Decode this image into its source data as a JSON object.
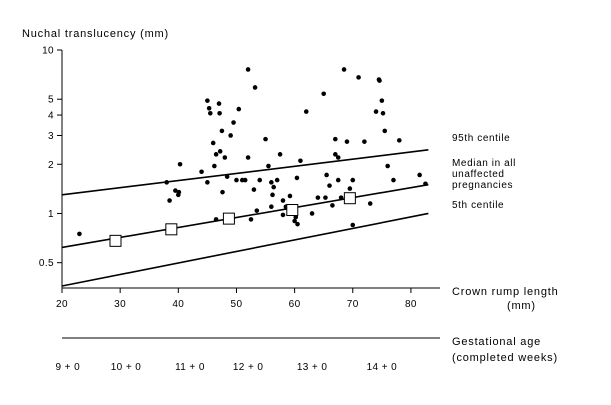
{
  "chart_data": {
    "type": "scatter",
    "ylabel": "Nuchal translucency (mm)",
    "xlabel_line1": "Crown rump length",
    "xlabel_line2": "(mm)",
    "xlim": [
      20,
      85
    ],
    "ylim": [
      0.35,
      10
    ],
    "yscale": "log",
    "x_ticks": [
      "20",
      "30",
      "40",
      "50",
      "60",
      "70",
      "80"
    ],
    "x_tick_values": [
      20,
      30,
      40,
      50,
      60,
      70,
      80
    ],
    "y_ticks": [
      "10",
      "5",
      "4",
      "3",
      "2",
      "1",
      "0.5"
    ],
    "y_tick_values": [
      10,
      5,
      4,
      3,
      2,
      1,
      0.5
    ],
    "gestational_label_line1": "Gestational age",
    "gestational_label_line2": "(completed weeks)",
    "gestational_ticks": [
      "9 + 0",
      "10 + 0",
      "11 + 0",
      "12 + 0",
      "13 + 0",
      "14 + 0"
    ],
    "gestational_tick_crl": [
      21,
      31,
      42,
      52,
      63,
      75
    ],
    "lines": [
      {
        "name": "95th centile",
        "label_lines": [
          "95th centile"
        ],
        "x": [
          20,
          83
        ],
        "y": [
          1.3,
          2.45
        ]
      },
      {
        "name": "Median in all unaffected pregnancies",
        "label_lines": [
          "Median in all",
          "unaffected",
          "pregnancies"
        ],
        "x": [
          20,
          83
        ],
        "y": [
          0.62,
          1.5
        ]
      },
      {
        "name": "5th centile",
        "label_lines": [
          "5th centile"
        ],
        "x": [
          20,
          83
        ],
        "y": [
          0.36,
          1.0
        ]
      }
    ],
    "squares": {
      "name": "Median by gestational week",
      "x": [
        29.2,
        38.8,
        48.7,
        59.6,
        69.5
      ],
      "y": [
        0.68,
        0.8,
        0.93,
        1.05,
        1.24
      ]
    },
    "points": {
      "name": "Affected pregnancies",
      "x": [
        23,
        38,
        38.5,
        39.5,
        40,
        40.3,
        40.1,
        44,
        45,
        45.3,
        45.5,
        45,
        46,
        46.2,
        46.5,
        47,
        47.1,
        47.2,
        47.6,
        46.5,
        47.5,
        48,
        48.4,
        48.6,
        49,
        49.5,
        50,
        50.4,
        51,
        51.5,
        52,
        52.5,
        52,
        53,
        53.2,
        53.5,
        54,
        55.5,
        55,
        56,
        56,
        56.2,
        56.4,
        57,
        57.5,
        58,
        58,
        58.5,
        59,
        59.2,
        60,
        60.5,
        60.2,
        60.4,
        61,
        62,
        63,
        64,
        65,
        65.3,
        65.5,
        66,
        66.5,
        67,
        67,
        67.5,
        67.5,
        68,
        68.5,
        69,
        69.5,
        70,
        70,
        71,
        72,
        73,
        74,
        74.5,
        75,
        75.2,
        74.6,
        75.5,
        76,
        77,
        78,
        81.5,
        82.5
      ],
      "y": [
        0.75,
        1.55,
        1.2,
        1.38,
        1.3,
        2.0,
        1.35,
        1.8,
        4.9,
        4.4,
        4.1,
        1.55,
        2.7,
        1.95,
        2.3,
        4.7,
        4.1,
        2.4,
        1.35,
        0.92,
        3.2,
        2.2,
        1.68,
        0.95,
        3.0,
        3.6,
        1.6,
        4.35,
        1.6,
        1.6,
        7.6,
        0.92,
        2.2,
        1.4,
        5.9,
        1.04,
        1.6,
        1.95,
        2.85,
        1.55,
        1.1,
        1.3,
        1.45,
        1.6,
        2.3,
        1.2,
        0.98,
        1.1,
        1.0,
        1.28,
        0.9,
        0.86,
        0.95,
        1.65,
        2.1,
        4.2,
        1.0,
        1.25,
        5.4,
        1.25,
        1.72,
        1.48,
        1.12,
        2.85,
        2.3,
        1.6,
        2.2,
        1.25,
        7.6,
        2.75,
        1.42,
        1.6,
        0.85,
        6.8,
        2.75,
        1.15,
        4.2,
        6.6,
        4.9,
        4.1,
        6.5,
        3.2,
        1.95,
        1.6,
        2.8,
        1.72,
        1.52
      ]
    }
  }
}
